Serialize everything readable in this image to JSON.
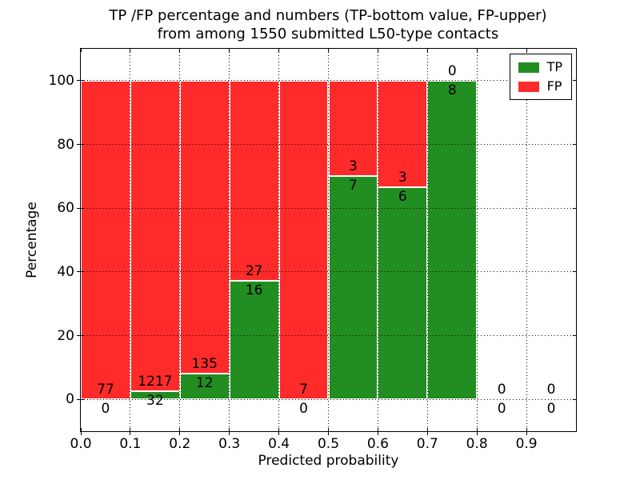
{
  "chart_data": {
    "type": "bar",
    "subtype": "stacked_percentage_histogram",
    "title": "TP /FP percentage and numbers (TP-bottom value, FP-upper)\nfrom among 1550 submitted L50-type contacts",
    "xlabel": "Predicted probability",
    "ylabel": "Percentage",
    "xlim": [
      0.0,
      1.0
    ],
    "ylim": [
      -10,
      110
    ],
    "xticks": [
      "0.0",
      "0.1",
      "0.2",
      "0.3",
      "0.4",
      "0.5",
      "0.6",
      "0.7",
      "0.8",
      "0.9"
    ],
    "yticks": [
      "0",
      "20",
      "40",
      "60",
      "80",
      "100"
    ],
    "grid": "dotted",
    "bin_edges": [
      0.0,
      0.1,
      0.2,
      0.3,
      0.4,
      0.5,
      0.6,
      0.7,
      0.8,
      0.9,
      1.0
    ],
    "series": [
      {
        "name": "TP",
        "color": "#228e22",
        "counts": [
          0,
          32,
          12,
          16,
          0,
          7,
          6,
          8,
          0,
          0
        ]
      },
      {
        "name": "FP",
        "color": "#ff2a2a",
        "counts": [
          77,
          1217,
          135,
          27,
          7,
          3,
          3,
          0,
          0,
          0
        ]
      }
    ],
    "legend_position": "upper right",
    "annotation_rule": "TP count below segment boundary, FP count above segment boundary",
    "total_submitted": 1550
  }
}
